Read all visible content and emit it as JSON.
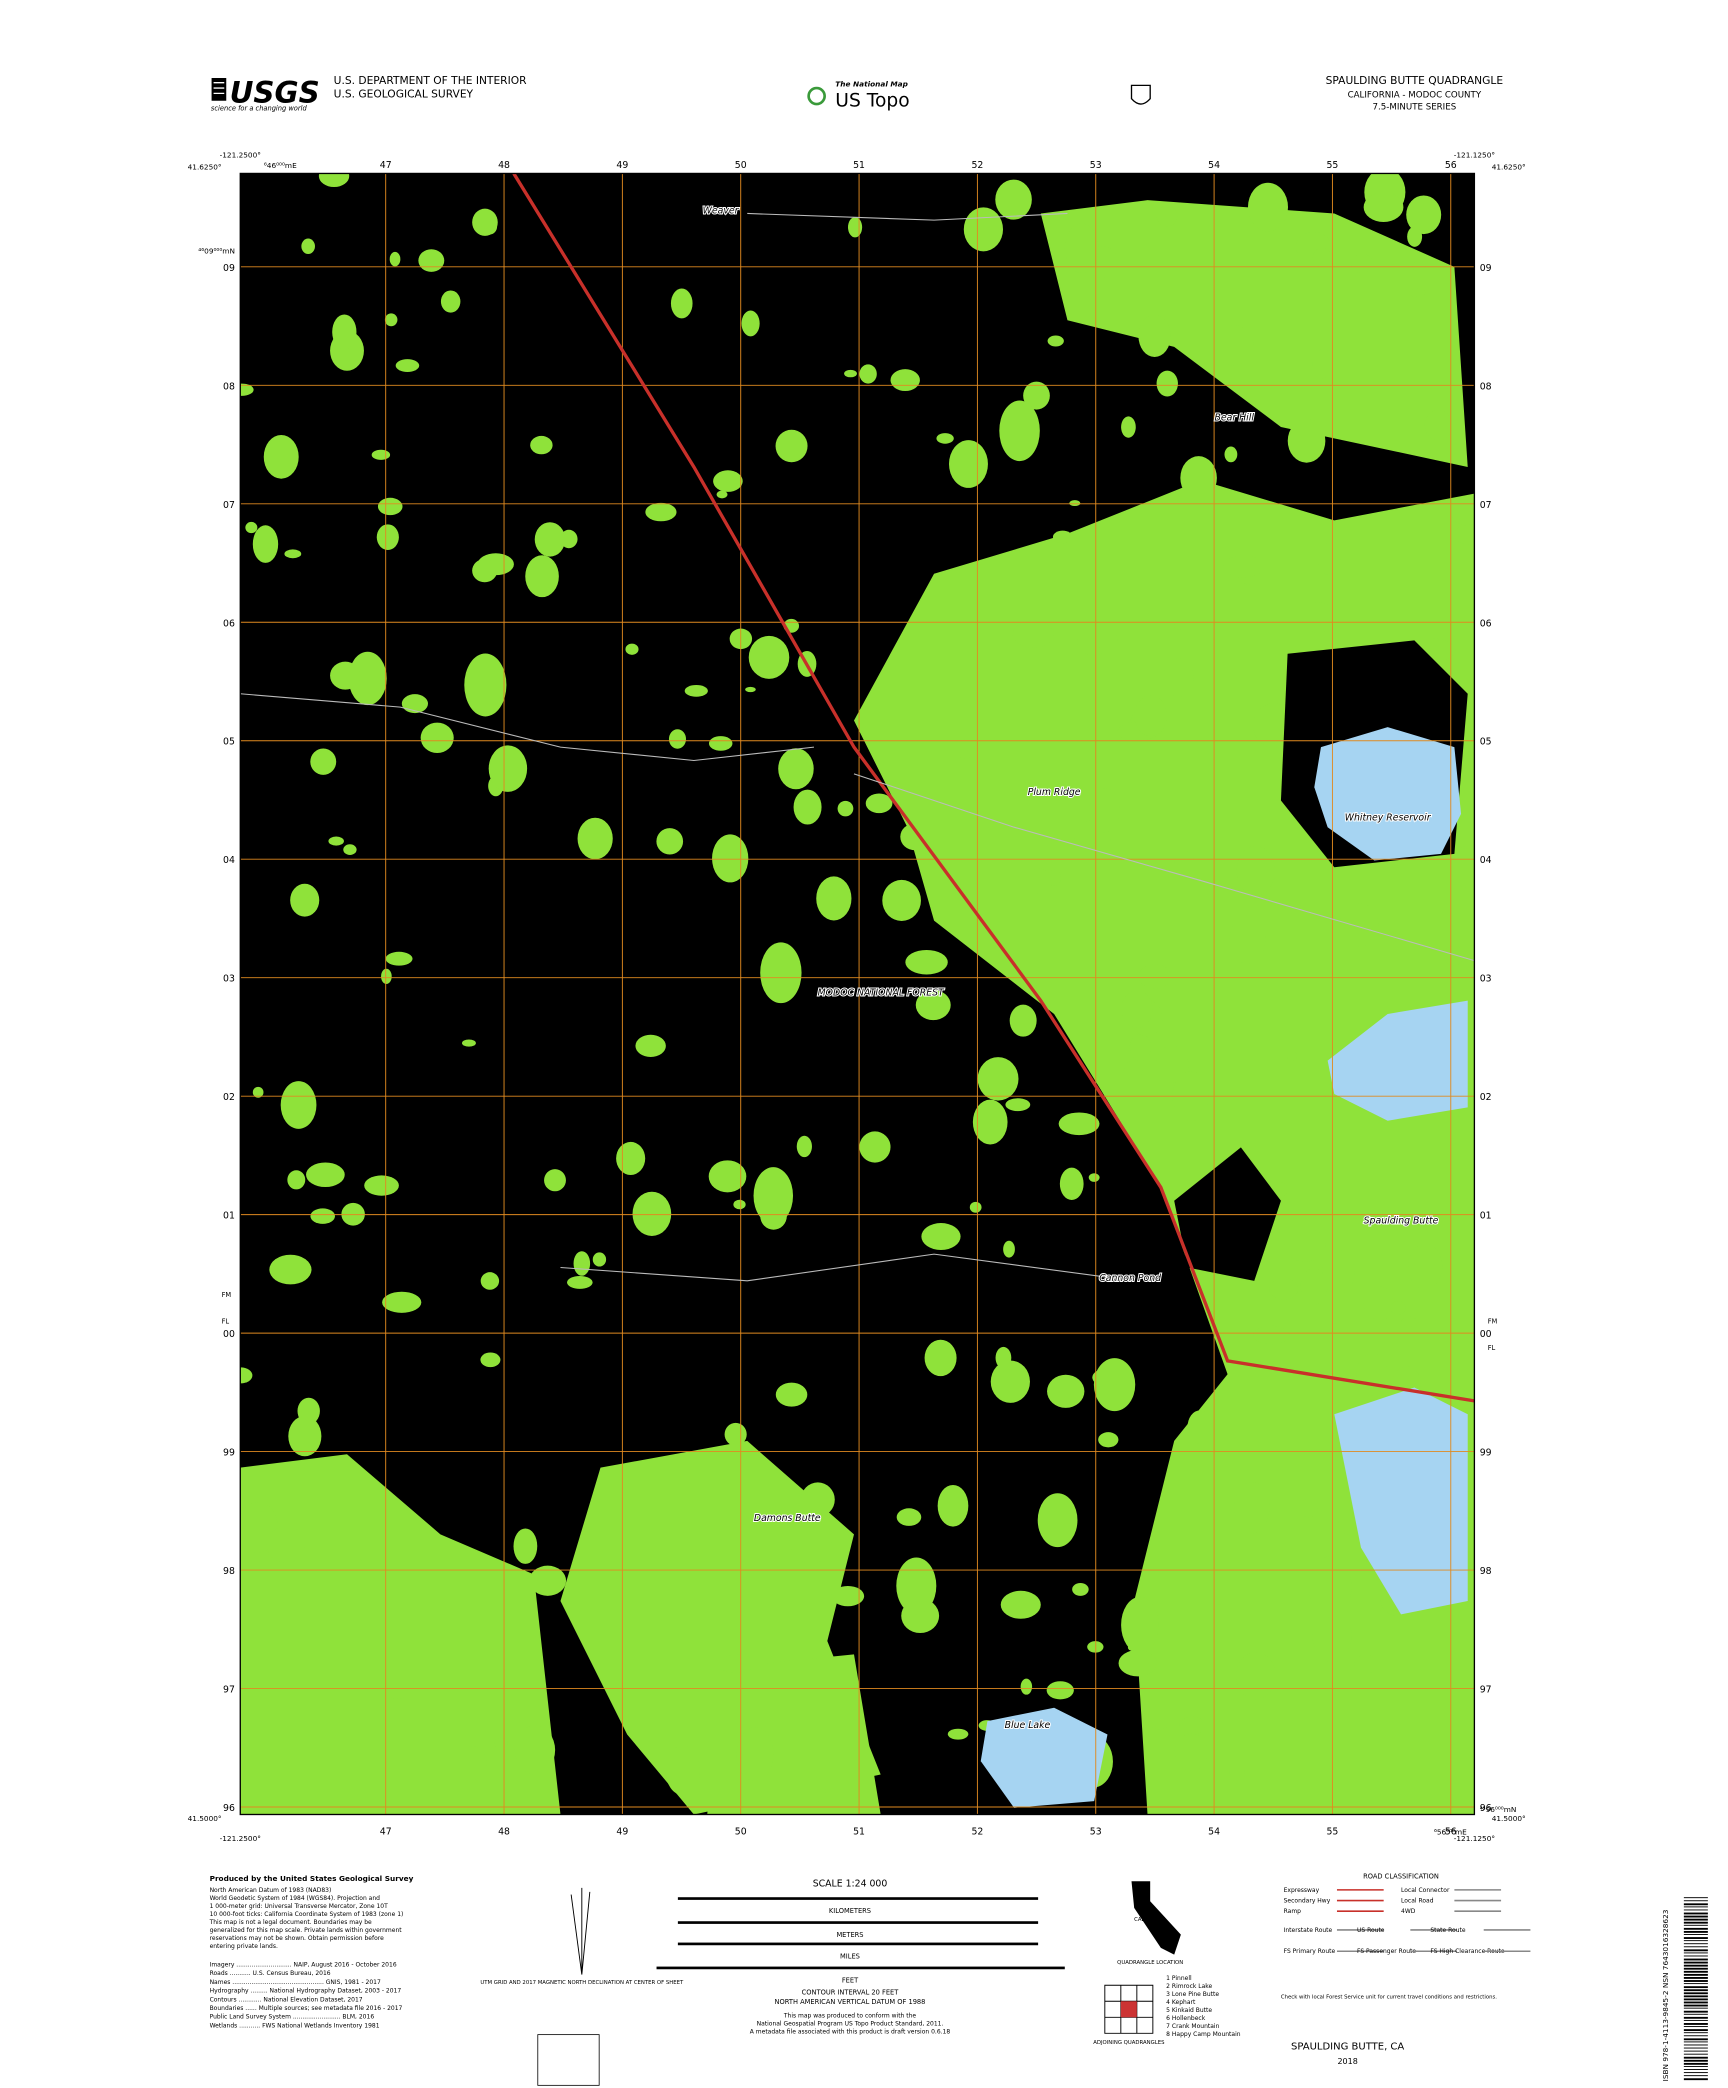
{
  "header": {
    "agency_logo": "USGS",
    "agency_tagline": "science for a changing world",
    "department": "U.S. DEPARTMENT OF THE INTERIOR",
    "survey": "U.S. GEOLOGICAL SURVEY",
    "national_map": "The National Map",
    "product": "US Topo",
    "quad_title": "SPAULDING BUTTE QUADRANGLE",
    "state_county": "CALIFORNIA - MODOC COUNTY",
    "series": "7.5-MINUTE SERIES"
  },
  "map": {
    "corners": {
      "nw_lon": "-121.2500°",
      "nw_lat": "41.6250°",
      "ne_lon": "-121.1250°",
      "ne_lat": "41.6250°",
      "sw_lon": "-121.2500°",
      "sw_lat": "41.5000°",
      "se_lon": "-121.1250°",
      "se_lat": "41.5000°"
    },
    "easting_origin": "⁶46⁰⁰⁰mE",
    "northing_origin": "⁴⁶09⁰⁰⁰mN",
    "easting_end": "⁶56⁰⁰⁰mE",
    "northing_end": "⁴⁵96⁰⁰⁰mN",
    "eastings": [
      "47",
      "48",
      "49",
      "50",
      "51",
      "52",
      "53",
      "54",
      "55",
      "56"
    ],
    "northings": [
      "09",
      "08",
      "07",
      "06",
      "05",
      "04",
      "03",
      "02",
      "01",
      "00",
      "99",
      "98",
      "97",
      "96"
    ],
    "zone_marks": [
      "FM",
      "FL"
    ],
    "place_names": [
      "Bear Hill",
      "Plum Ridge",
      "Whitney Reservoir",
      "MODOC NATIONAL FOREST",
      "Spaulding Butte",
      "Cannon Pond",
      "Damons Butte",
      "Blue Lake",
      "Weaver"
    ]
  },
  "footer": {
    "producer": "Produced by the United States Geological Survey",
    "datum_notes": [
      "North American Datum of 1983 (NAD83)",
      "World Geodetic System of 1984 (WGS84). Projection and",
      "1 000-meter grid: Universal Transverse Mercator, Zone 10T",
      "10 000-foot ticks: California Coordinate System of 1983 (zone 1)",
      "This map is not a legal document. Boundaries may be",
      "generalized for this map scale. Private lands within government",
      "reservations may not be shown. Obtain permission before",
      "entering private lands."
    ],
    "sources": [
      "Imagery ............................. NAIP, August 2016 - October 2016",
      "Roads ........... U.S. Census Bureau, 2016",
      "Names ................................................ GNIS, 1981 - 2017",
      "Hydrography ......... National Hydrography Dataset, 2003 - 2017",
      "Contours ............ National Elevation Dataset, 2017",
      "Boundaries ...... Multiple sources; see metadata file 2016 - 2017",
      "Public Land Survey System ......................... BLM, 2016",
      "Wetlands ........... FWS National Wetlands Inventory 1981"
    ],
    "declination": "UTM GRID AND 2017 MAGNETIC NORTH DECLINATION AT CENTER OF SHEET",
    "scale": "SCALE 1:24 000",
    "kilometers": "KILOMETERS",
    "meters": "METERS",
    "miles": "MILES",
    "feet": "FEET",
    "contour_interval": "CONTOUR INTERVAL 20 FEET",
    "vertical_datum": "NORTH AMERICAN VERTICAL DATUM OF 1988",
    "standard_note": [
      "This map was produced to conform with the",
      "National Geospatial Program US Topo Product Standard, 2011.",
      "A metadata file associated with this product is draft version 0.6.18"
    ],
    "adjoining_title": "ADJOINING QUADRANGLES",
    "adjoining": [
      "1 Pinnell",
      "2 Rimrock Lake",
      "3 Lone Pine Butte",
      "4 Kephart",
      "5 Kinkaid Butte",
      "6 Hollenbeck",
      "7 Crank Mountain",
      "8 Happy Camp Mountain"
    ],
    "location_label": "CALIFORNIA",
    "location_caption": "QUADRANGLE LOCATION",
    "road_title": "ROAD CLASSIFICATION",
    "roads": [
      "Expressway",
      "Secondary Hwy",
      "Ramp",
      "Local Connector",
      "Local Road",
      "4WD",
      "Interstate Route",
      "US Route",
      "State Route",
      "FS Primary Route",
      "FS Passenger Route",
      "FS High Clearance Route"
    ],
    "road_note": "Check with local Forest Service unit for current travel conditions and restrictions.",
    "footer_title": "SPAULDING BUTTE, CA",
    "year": "2018",
    "barcode_text": "ISBN 978-1-4113-9845-2 NSN 7643016328623"
  }
}
